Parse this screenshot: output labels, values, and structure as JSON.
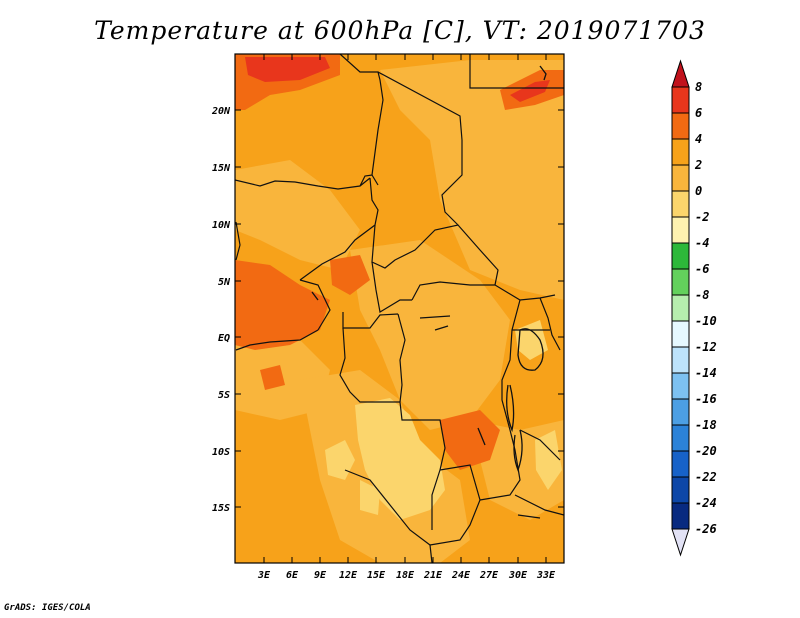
{
  "title": "Temperature at 600hPa [C], VT: 2019071703",
  "credit": "GrADS: IGES/COLA",
  "map": {
    "lat_labels": [
      "20N",
      "15N",
      "10N",
      "5N",
      "EQ",
      "5S",
      "10S",
      "15S"
    ],
    "lon_labels": [
      "3E",
      "6E",
      "9E",
      "12E",
      "15E",
      "18E",
      "21E",
      "24E",
      "27E",
      "30E",
      "33E"
    ]
  },
  "colorbar": {
    "labels": [
      "8",
      "6",
      "4",
      "2",
      "0",
      "-2",
      "-4",
      "-6",
      "-8",
      "-10",
      "-12",
      "-14",
      "-16",
      "-18",
      "-20",
      "-22",
      "-24",
      "-26"
    ],
    "colors": {
      "above_8": "#c1121c",
      "6_to_8": "#e8361c",
      "4_to_6": "#f26a12",
      "2_to_4": "#f7a21a",
      "0_to_2": "#f9b53c",
      "-2_to_0": "#fbd56c",
      "-4_to_-2": "#fef2b0",
      "-6_to_-4": "#2db83a",
      "-8_to_-6": "#63d15c",
      "-10_to_-8": "#b6eeae",
      "-12_to_-10": "#e6f8ff",
      "-14_to_-12": "#bde3fb",
      "-16_to_-14": "#7dc1f1",
      "-18_to_-16": "#4c9fe4",
      "-20_to_-18": "#2b82d8",
      "-22_to_-20": "#1762c8",
      "-24_to_-22": "#0d47a8",
      "-26_to_-24": "#082a80",
      "below_-26": "#e2e2f5"
    }
  }
}
